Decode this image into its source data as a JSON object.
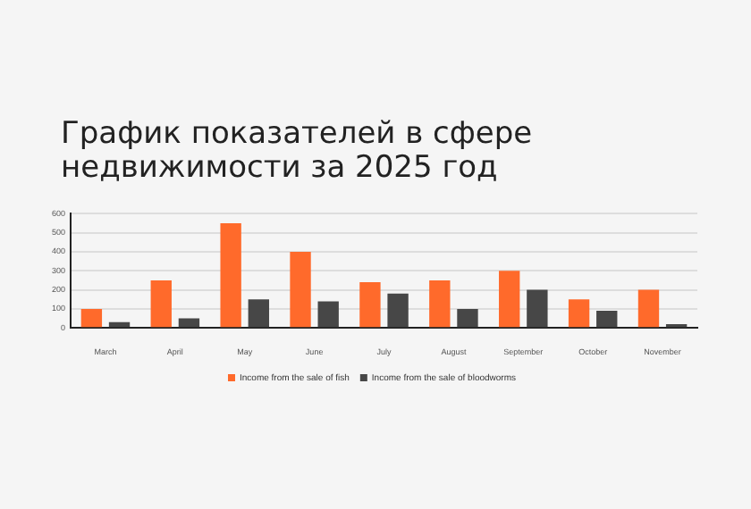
{
  "chart_data": {
    "type": "bar",
    "title": "График показателей в сфере недвижимости за 2025 год",
    "categories": [
      "March",
      "April",
      "May",
      "June",
      "July",
      "August",
      "September",
      "October",
      "November"
    ],
    "series": [
      {
        "name": "Income from the sale of fish",
        "color": "#ff6a2b",
        "values": [
          100,
          250,
          550,
          400,
          240,
          250,
          300,
          150,
          200
        ]
      },
      {
        "name": "Income from the sale of bloodworms",
        "color": "#474747",
        "values": [
          30,
          50,
          150,
          140,
          180,
          100,
          200,
          90,
          20
        ]
      }
    ],
    "ylim": [
      0,
      600
    ],
    "yticks": [
      0,
      100,
      200,
      300,
      400,
      500,
      600
    ],
    "grid": "y",
    "legend": "bottom"
  }
}
